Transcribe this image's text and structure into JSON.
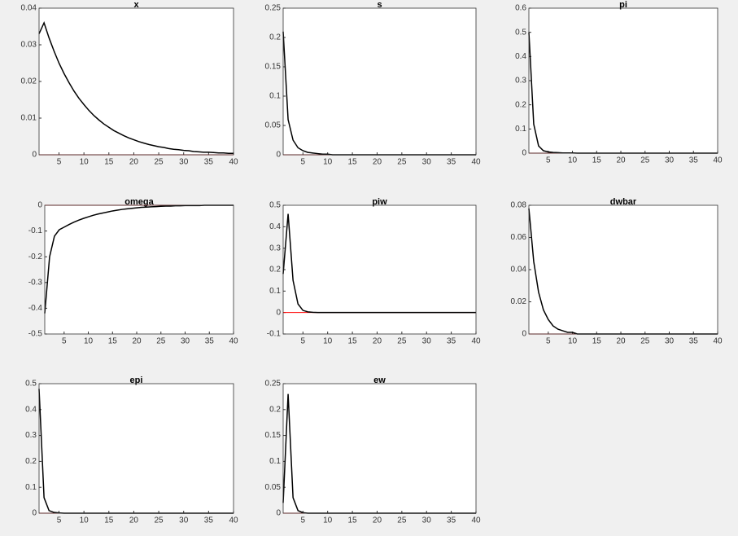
{
  "chart_data": [
    {
      "type": "line",
      "title": "x",
      "x": [
        1,
        2,
        3,
        4,
        5,
        6,
        7,
        8,
        9,
        10,
        11,
        12,
        13,
        14,
        15,
        16,
        17,
        18,
        19,
        20,
        21,
        22,
        23,
        24,
        25,
        26,
        27,
        28,
        29,
        30,
        31,
        32,
        33,
        34,
        35,
        36,
        37,
        38,
        39,
        40
      ],
      "series": [
        {
          "color": "#000000",
          "values": [
            0.033,
            0.036,
            0.0319,
            0.0283,
            0.025,
            0.0222,
            0.0197,
            0.0174,
            0.0154,
            0.0137,
            0.0121,
            0.0107,
            0.0095,
            0.0084,
            0.0075,
            0.0066,
            0.0059,
            0.0052,
            0.0046,
            0.0041,
            0.0036,
            0.0032,
            0.0028,
            0.0025,
            0.0022,
            0.002,
            0.0017,
            0.0015,
            0.0014,
            0.0012,
            0.0011,
            0.0009,
            0.0008,
            0.0007,
            0.0007,
            0.0006,
            0.0005,
            0.0005,
            0.0004,
            0.0004
          ]
        }
      ],
      "hline": {
        "value": 0,
        "color": "#ff0000"
      },
      "xlim": [
        1,
        40
      ],
      "xticks": [
        5,
        10,
        15,
        20,
        25,
        30,
        35,
        40
      ],
      "ylim": [
        0,
        0.04
      ],
      "yticks": [
        0,
        0.01,
        0.02,
        0.03,
        0.04
      ]
    },
    {
      "type": "line",
      "title": "s",
      "x": [
        1,
        2,
        3,
        4,
        5,
        6,
        7,
        8,
        9,
        10,
        11,
        12,
        13,
        14,
        15,
        16,
        17,
        18,
        19,
        20,
        21,
        22,
        23,
        24,
        25,
        26,
        27,
        28,
        29,
        30,
        31,
        32,
        33,
        34,
        35,
        36,
        37,
        38,
        39,
        40
      ],
      "series": [
        {
          "color": "#000000",
          "values": [
            0.21,
            0.06,
            0.025,
            0.012,
            0.007,
            0.004,
            0.003,
            0.002,
            0.001,
            0.001,
            0,
            0,
            0,
            0,
            0,
            0,
            0,
            0,
            0,
            0,
            0,
            0,
            0,
            0,
            0,
            0,
            0,
            0,
            0,
            0,
            0,
            0,
            0,
            0,
            0,
            0,
            0,
            0,
            0,
            0
          ]
        }
      ],
      "hline": {
        "value": 0,
        "color": "#ff0000"
      },
      "xlim": [
        1,
        40
      ],
      "xticks": [
        5,
        10,
        15,
        20,
        25,
        30,
        35,
        40
      ],
      "ylim": [
        0,
        0.25
      ],
      "yticks": [
        0,
        0.05,
        0.1,
        0.15,
        0.2,
        0.25
      ]
    },
    {
      "type": "line",
      "title": "pi",
      "x": [
        1,
        2,
        3,
        4,
        5,
        6,
        7,
        8,
        9,
        10,
        11,
        12,
        13,
        14,
        15,
        16,
        17,
        18,
        19,
        20,
        21,
        22,
        23,
        24,
        25,
        26,
        27,
        28,
        29,
        30,
        31,
        32,
        33,
        34,
        35,
        36,
        37,
        38,
        39,
        40
      ],
      "series": [
        {
          "color": "#000000",
          "values": [
            0.5,
            0.12,
            0.03,
            0.01,
            0.005,
            0.003,
            0.002,
            0.001,
            0.001,
            0.001,
            0,
            0,
            0,
            0,
            0,
            0,
            0,
            0,
            0,
            0,
            0,
            0,
            0,
            0,
            0,
            0,
            0,
            0,
            0,
            0,
            0,
            0,
            0,
            0,
            0,
            0,
            0,
            0,
            0,
            0
          ]
        }
      ],
      "hline": {
        "value": 0,
        "color": "#ff0000"
      },
      "xlim": [
        1,
        40
      ],
      "xticks": [
        5,
        10,
        15,
        20,
        25,
        30,
        35,
        40
      ],
      "ylim": [
        0,
        0.6
      ],
      "yticks": [
        0,
        0.1,
        0.2,
        0.3,
        0.4,
        0.5,
        0.6
      ]
    },
    {
      "type": "line",
      "title": "omega",
      "x": [
        1,
        2,
        3,
        4,
        5,
        6,
        7,
        8,
        9,
        10,
        11,
        12,
        13,
        14,
        15,
        16,
        17,
        18,
        19,
        20,
        21,
        22,
        23,
        24,
        25,
        26,
        27,
        28,
        29,
        30,
        31,
        32,
        33,
        34,
        35,
        36,
        37,
        38,
        39,
        40
      ],
      "series": [
        {
          "color": "#000000",
          "values": [
            -0.42,
            -0.2,
            -0.12,
            -0.095,
            -0.085,
            -0.075,
            -0.066,
            -0.058,
            -0.051,
            -0.045,
            -0.039,
            -0.034,
            -0.03,
            -0.026,
            -0.022,
            -0.019,
            -0.016,
            -0.014,
            -0.012,
            -0.01,
            -0.008,
            -0.007,
            -0.006,
            -0.005,
            -0.004,
            -0.003,
            -0.003,
            -0.002,
            -0.002,
            -0.001,
            -0.001,
            -0.001,
            -0.001,
            0,
            0,
            0,
            0,
            0,
            0,
            0
          ]
        }
      ],
      "hline": {
        "value": 0,
        "color": "#ff0000"
      },
      "xlim": [
        1,
        40
      ],
      "xticks": [
        5,
        10,
        15,
        20,
        25,
        30,
        35,
        40
      ],
      "ylim": [
        -0.5,
        0
      ],
      "yticks": [
        -0.5,
        -0.4,
        -0.3,
        -0.2,
        -0.1,
        0
      ]
    },
    {
      "type": "line",
      "title": "piw",
      "x": [
        1,
        2,
        3,
        4,
        5,
        6,
        7,
        8,
        9,
        10,
        11,
        12,
        13,
        14,
        15,
        16,
        17,
        18,
        19,
        20,
        21,
        22,
        23,
        24,
        25,
        26,
        27,
        28,
        29,
        30,
        31,
        32,
        33,
        34,
        35,
        36,
        37,
        38,
        39,
        40
      ],
      "series": [
        {
          "color": "#000000",
          "values": [
            0.18,
            0.46,
            0.15,
            0.04,
            0.01,
            0.003,
            0.001,
            0,
            0,
            0,
            0,
            0,
            0,
            0,
            0,
            0,
            0,
            0,
            0,
            0,
            0,
            0,
            0,
            0,
            0,
            0,
            0,
            0,
            0,
            0,
            0,
            0,
            0,
            0,
            0,
            0,
            0,
            0,
            0,
            0
          ]
        }
      ],
      "hline": {
        "value": 0,
        "color": "#ff0000"
      },
      "xlim": [
        1,
        40
      ],
      "xticks": [
        5,
        10,
        15,
        20,
        25,
        30,
        35,
        40
      ],
      "ylim": [
        -0.1,
        0.5
      ],
      "yticks": [
        -0.1,
        0,
        0.1,
        0.2,
        0.3,
        0.4,
        0.5
      ]
    },
    {
      "type": "line",
      "title": "dwbar",
      "x": [
        1,
        2,
        3,
        4,
        5,
        6,
        7,
        8,
        9,
        10,
        11,
        12,
        13,
        14,
        15,
        16,
        17,
        18,
        19,
        20,
        21,
        22,
        23,
        24,
        25,
        26,
        27,
        28,
        29,
        30,
        31,
        32,
        33,
        34,
        35,
        36,
        37,
        38,
        39,
        40
      ],
      "series": [
        {
          "color": "#000000",
          "values": [
            0.078,
            0.045,
            0.026,
            0.015,
            0.009,
            0.005,
            0.003,
            0.002,
            0.001,
            0.001,
            0,
            0,
            0,
            0,
            0,
            0,
            0,
            0,
            0,
            0,
            0,
            0,
            0,
            0,
            0,
            0,
            0,
            0,
            0,
            0,
            0,
            0,
            0,
            0,
            0,
            0,
            0,
            0,
            0,
            0
          ]
        }
      ],
      "hline": {
        "value": 0,
        "color": "#ff0000"
      },
      "xlim": [
        1,
        40
      ],
      "xticks": [
        5,
        10,
        15,
        20,
        25,
        30,
        35,
        40
      ],
      "ylim": [
        0,
        0.08
      ],
      "yticks": [
        0,
        0.02,
        0.04,
        0.06,
        0.08
      ]
    },
    {
      "type": "line",
      "title": "epi",
      "x": [
        1,
        2,
        3,
        4,
        5,
        6,
        7,
        8,
        9,
        10,
        11,
        12,
        13,
        14,
        15,
        16,
        17,
        18,
        19,
        20,
        21,
        22,
        23,
        24,
        25,
        26,
        27,
        28,
        29,
        30,
        31,
        32,
        33,
        34,
        35,
        36,
        37,
        38,
        39,
        40
      ],
      "series": [
        {
          "color": "#000000",
          "values": [
            0.48,
            0.06,
            0.01,
            0.003,
            0.001,
            0,
            0,
            0,
            0,
            0,
            0,
            0,
            0,
            0,
            0,
            0,
            0,
            0,
            0,
            0,
            0,
            0,
            0,
            0,
            0,
            0,
            0,
            0,
            0,
            0,
            0,
            0,
            0,
            0,
            0,
            0,
            0,
            0,
            0,
            0
          ]
        }
      ],
      "hline": {
        "value": 0,
        "color": "#ff0000"
      },
      "xlim": [
        1,
        40
      ],
      "xticks": [
        5,
        10,
        15,
        20,
        25,
        30,
        35,
        40
      ],
      "ylim": [
        0,
        0.5
      ],
      "yticks": [
        0,
        0.1,
        0.2,
        0.3,
        0.4,
        0.5
      ]
    },
    {
      "type": "line",
      "title": "ew",
      "x": [
        1,
        2,
        3,
        4,
        5,
        6,
        7,
        8,
        9,
        10,
        11,
        12,
        13,
        14,
        15,
        16,
        17,
        18,
        19,
        20,
        21,
        22,
        23,
        24,
        25,
        26,
        27,
        28,
        29,
        30,
        31,
        32,
        33,
        34,
        35,
        36,
        37,
        38,
        39,
        40
      ],
      "series": [
        {
          "color": "#000000",
          "values": [
            0.02,
            0.23,
            0.03,
            0.005,
            0.001,
            0,
            0,
            0,
            0,
            0,
            0,
            0,
            0,
            0,
            0,
            0,
            0,
            0,
            0,
            0,
            0,
            0,
            0,
            0,
            0,
            0,
            0,
            0,
            0,
            0,
            0,
            0,
            0,
            0,
            0,
            0,
            0,
            0,
            0,
            0
          ]
        }
      ],
      "hline": {
        "value": 0,
        "color": "#ff0000"
      },
      "xlim": [
        1,
        40
      ],
      "xticks": [
        5,
        10,
        15,
        20,
        25,
        30,
        35,
        40
      ],
      "ylim": [
        0,
        0.25
      ],
      "yticks": [
        0,
        0.05,
        0.1,
        0.15,
        0.2,
        0.25
      ]
    }
  ]
}
